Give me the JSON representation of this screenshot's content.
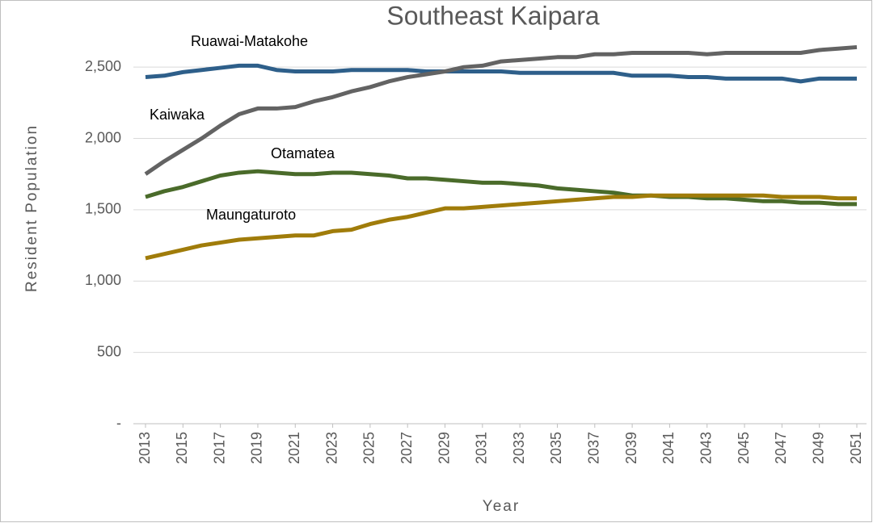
{
  "chart_data": {
    "type": "line",
    "title": "Southeast Kaipara",
    "x_label": "Year",
    "y_label": "Resident Population",
    "x": [
      2013,
      2014,
      2015,
      2016,
      2017,
      2018,
      2019,
      2020,
      2021,
      2022,
      2023,
      2024,
      2025,
      2026,
      2027,
      2028,
      2029,
      2030,
      2031,
      2032,
      2033,
      2034,
      2035,
      2036,
      2037,
      2038,
      2039,
      2040,
      2041,
      2042,
      2043,
      2044,
      2045,
      2046,
      2047,
      2048,
      2049,
      2050,
      2051
    ],
    "xlim": [
      2013,
      2051
    ],
    "xticks": [
      2013,
      2015,
      2017,
      2019,
      2021,
      2023,
      2025,
      2027,
      2029,
      2031,
      2033,
      2035,
      2037,
      2039,
      2041,
      2043,
      2045,
      2047,
      2049,
      2051
    ],
    "ylim": [
      0,
      2750
    ],
    "yticks": [
      {
        "value": 0,
        "label": "-"
      },
      500,
      {
        "value": 1000,
        "label": "1,000"
      },
      {
        "value": 1500,
        "label": "1,500"
      },
      {
        "value": 2000,
        "label": "2,000"
      },
      {
        "value": 2500,
        "label": "2,500"
      }
    ],
    "grid": true,
    "series": [
      {
        "name": "Ruawai-Matakohe",
        "color": "#2e5f8a",
        "values": [
          2430,
          2440,
          2465,
          2480,
          2495,
          2510,
          2510,
          2480,
          2470,
          2470,
          2470,
          2480,
          2480,
          2480,
          2480,
          2470,
          2470,
          2470,
          2470,
          2470,
          2460,
          2460,
          2460,
          2460,
          2460,
          2460,
          2440,
          2440,
          2440,
          2430,
          2430,
          2420,
          2420,
          2420,
          2420,
          2400,
          2420,
          2420,
          2420
        ]
      },
      {
        "name": "Kaiwaka",
        "color": "#636363",
        "values": [
          1750,
          1840,
          1920,
          2000,
          2090,
          2170,
          2210,
          2210,
          2220,
          2260,
          2290,
          2330,
          2360,
          2400,
          2430,
          2450,
          2470,
          2500,
          2510,
          2540,
          2550,
          2560,
          2570,
          2570,
          2590,
          2590,
          2600,
          2600,
          2600,
          2600,
          2590,
          2600,
          2600,
          2600,
          2600,
          2600,
          2620,
          2630,
          2640
        ]
      },
      {
        "name": "Otamatea",
        "color": "#4a6b2a",
        "values": [
          1590,
          1630,
          1660,
          1700,
          1740,
          1760,
          1770,
          1760,
          1750,
          1750,
          1760,
          1760,
          1750,
          1740,
          1720,
          1720,
          1710,
          1700,
          1690,
          1690,
          1680,
          1670,
          1650,
          1640,
          1630,
          1620,
          1600,
          1600,
          1590,
          1590,
          1580,
          1580,
          1570,
          1560,
          1560,
          1550,
          1550,
          1540,
          1540
        ]
      },
      {
        "name": "Maungaturoto",
        "color": "#a07c0a",
        "values": [
          1160,
          1190,
          1220,
          1250,
          1270,
          1290,
          1300,
          1310,
          1320,
          1320,
          1350,
          1360,
          1400,
          1430,
          1450,
          1480,
          1510,
          1510,
          1520,
          1530,
          1540,
          1550,
          1560,
          1570,
          1580,
          1590,
          1590,
          1600,
          1600,
          1600,
          1600,
          1600,
          1600,
          1600,
          1590,
          1590,
          1590,
          1580,
          1580
        ]
      }
    ]
  }
}
